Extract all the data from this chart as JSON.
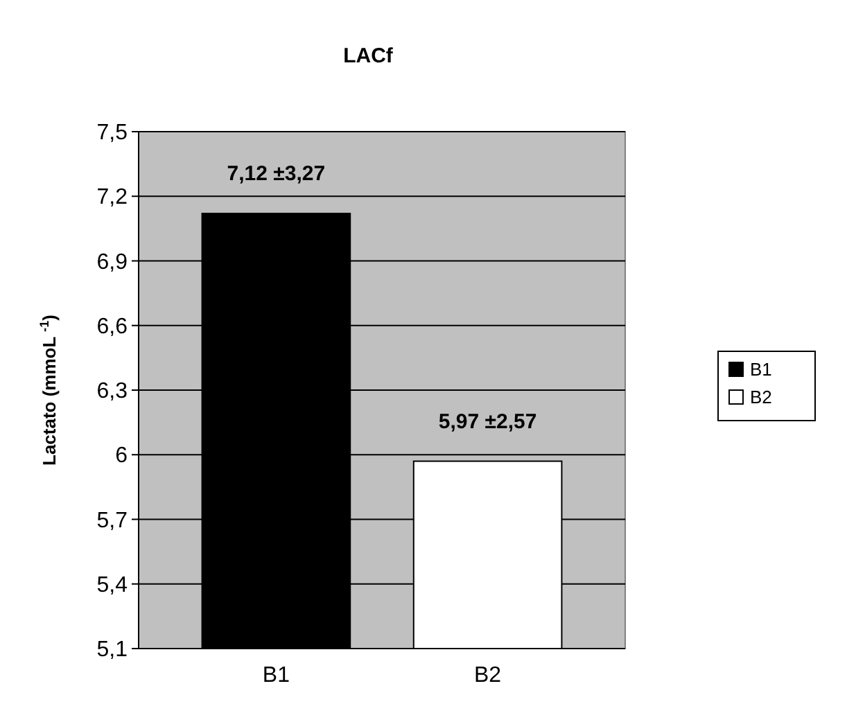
{
  "chart_data": {
    "type": "bar",
    "title": "LACf",
    "ylabel": "Lactato (mmoL $^{-1}$)",
    "categories": [
      "B1",
      "B2"
    ],
    "series": [
      {
        "name": "B1",
        "color": "#000000",
        "values": [
          7.12,
          null
        ],
        "value_labels": [
          "7,12 ±3,27",
          null
        ]
      },
      {
        "name": "B2",
        "color": "#ffffff",
        "values": [
          null,
          5.97
        ],
        "value_labels": [
          null,
          "5,97 ±2,57"
        ]
      }
    ],
    "ylim": [
      5.1,
      7.5
    ],
    "yticks": [
      {
        "value": 5.1,
        "label": "5,1"
      },
      {
        "value": 5.4,
        "label": "5,4"
      },
      {
        "value": 5.7,
        "label": "5,7"
      },
      {
        "value": 6,
        "label": "6"
      },
      {
        "value": 6.3,
        "label": "6,3"
      },
      {
        "value": 6.6,
        "label": "6,6"
      },
      {
        "value": 6.9,
        "label": "6,9"
      },
      {
        "value": 7.2,
        "label": "7,2"
      },
      {
        "value": 7.5,
        "label": "7,5"
      }
    ],
    "grid": "y",
    "legend": "right"
  }
}
